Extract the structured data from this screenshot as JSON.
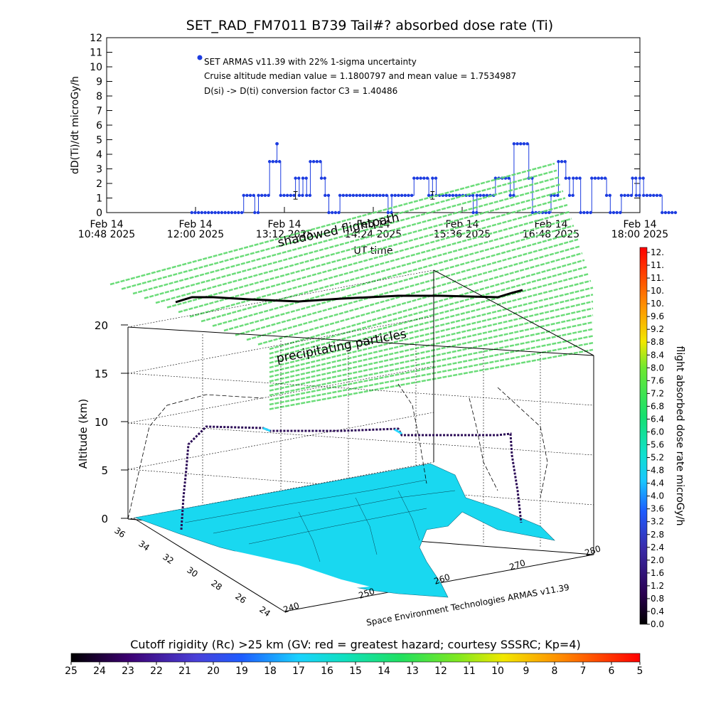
{
  "title": "SET_RAD_FM7011   B739 Tail#? absorbed dose rate (Ti)",
  "chart_data": [
    {
      "type": "line",
      "title": "SET_RAD_FM7011   B739 Tail#? absorbed dose rate (Ti)",
      "ylabel": "dD(Ti)/dt microGy/h",
      "xlabel": "UT time",
      "ylim": [
        0,
        12
      ],
      "yticks": [
        "0",
        "1",
        "2",
        "3",
        "4",
        "5",
        "6",
        "7",
        "8",
        "9",
        "10",
        "11",
        "12"
      ],
      "xticks": [
        {
          "line1": "Feb 14",
          "line2": "10:48 2025"
        },
        {
          "line1": "Feb 14",
          "line2": "12:00 2025"
        },
        {
          "line1": "Feb 14",
          "line2": "13:12 2025"
        },
        {
          "line1": "Feb 14",
          "line2": "14:24 2025"
        },
        {
          "line1": "Feb 14",
          "line2": "15:36 2025"
        },
        {
          "line1": "Feb 14",
          "line2": "16:48 2025"
        },
        {
          "line1": "Feb 14",
          "line2": "18:00 2025"
        }
      ],
      "xlim_hours": [
        10.8,
        18.0
      ],
      "legend": {
        "marker_label": "SET ARMAS v11.39 with 22% 1-sigma uncertainty",
        "line2": "Cruise altitude median value = 1.1800797 and mean value = 1.7534987",
        "line3": "D(si) -> D(ti) conversion factor C3 = 1.40486"
      },
      "series": [
        {
          "color": "#1c3ce0",
          "steps": [
            [
              11.95,
              0.0
            ],
            [
              12.65,
              1.18
            ],
            [
              12.8,
              0.0
            ],
            [
              12.85,
              1.18
            ],
            [
              13.0,
              3.5
            ],
            [
              13.15,
              1.18
            ],
            [
              13.35,
              2.36
            ],
            [
              13.4,
              1.18
            ],
            [
              13.45,
              2.36
            ],
            [
              13.5,
              1.18
            ],
            [
              13.55,
              3.5
            ],
            [
              13.7,
              2.36
            ],
            [
              13.75,
              1.18
            ],
            [
              13.8,
              0.0
            ],
            [
              13.95,
              1.18
            ],
            [
              14.6,
              0.0
            ],
            [
              14.65,
              1.18
            ],
            [
              14.95,
              2.36
            ],
            [
              15.15,
              1.18
            ],
            [
              15.2,
              2.36
            ],
            [
              15.25,
              1.18
            ],
            [
              15.75,
              0.0
            ],
            [
              15.8,
              1.18
            ],
            [
              16.05,
              2.36
            ],
            [
              16.25,
              1.18
            ],
            [
              16.3,
              4.72
            ],
            [
              16.5,
              2.36
            ],
            [
              16.55,
              0.0
            ],
            [
              16.8,
              1.18
            ],
            [
              16.9,
              3.5
            ],
            [
              17.0,
              2.36
            ],
            [
              17.05,
              1.18
            ],
            [
              17.1,
              2.36
            ],
            [
              17.2,
              0.0
            ],
            [
              17.35,
              2.36
            ],
            [
              17.55,
              1.18
            ],
            [
              17.6,
              0.0
            ],
            [
              17.75,
              1.18
            ],
            [
              17.9,
              2.36
            ],
            [
              17.95,
              1.18
            ],
            [
              18.0,
              2.36
            ],
            [
              18.05,
              1.18
            ],
            [
              18.3,
              0.0
            ],
            [
              18.5,
              0.0
            ]
          ],
          "error_bars": [
            {
              "x": 13.35,
              "y": 1.18,
              "err": 0.26
            },
            {
              "x": 15.2,
              "y": 1.18,
              "err": 0.26
            }
          ],
          "spikes": [
            {
              "x": 13.1,
              "y": 4.72
            }
          ]
        }
      ]
    },
    {
      "type": "scatter",
      "title": "",
      "zlabel": "Altitude (km)",
      "zticks": [
        "0",
        "5",
        "10",
        "15",
        "20"
      ],
      "yticks": [
        "36",
        "34",
        "32",
        "30",
        "28",
        "26",
        "24"
      ],
      "xticks": [
        "240",
        "250",
        "260",
        "270",
        "280"
      ],
      "annotation_shadow": "shadowed flightpath",
      "annotation_particles": "precipitating particles",
      "credit": "Space Environment Technologies ARMAS v11.39",
      "flight_altitude_km": [
        0.2,
        6.5,
        9.6,
        9.4,
        9.2,
        9.1,
        9.3,
        8.8,
        8.5,
        0.4
      ],
      "right_colorbar": {
        "label": "flight absorbed dose rate microGy/h",
        "ticks": [
          "12.",
          "11.",
          "11.",
          "10.",
          "10.",
          "9.6",
          "9.2",
          "8.8",
          "8.4",
          "8.0",
          "7.6",
          "7.2",
          "6.8",
          "6.4",
          "6.0",
          "5.6",
          "5.2",
          "4.8",
          "4.4",
          "4.0",
          "3.6",
          "3.2",
          "2.8",
          "2.4",
          "2.0",
          "1.6",
          "1.2",
          "0.8",
          "0.4",
          "0.0"
        ]
      },
      "bottom_colorbar": {
        "label": "Cutoff rigidity (Rc) >25 km (GV: red = greatest hazard; courtesy SSSRC; Kp=4)",
        "ticks": [
          "25",
          "24",
          "23",
          "22",
          "21",
          "20",
          "19",
          "18",
          "17",
          "16",
          "15",
          "14",
          "13",
          "12",
          "11",
          "10",
          "9",
          "8",
          "7",
          "6",
          "5"
        ]
      }
    }
  ]
}
